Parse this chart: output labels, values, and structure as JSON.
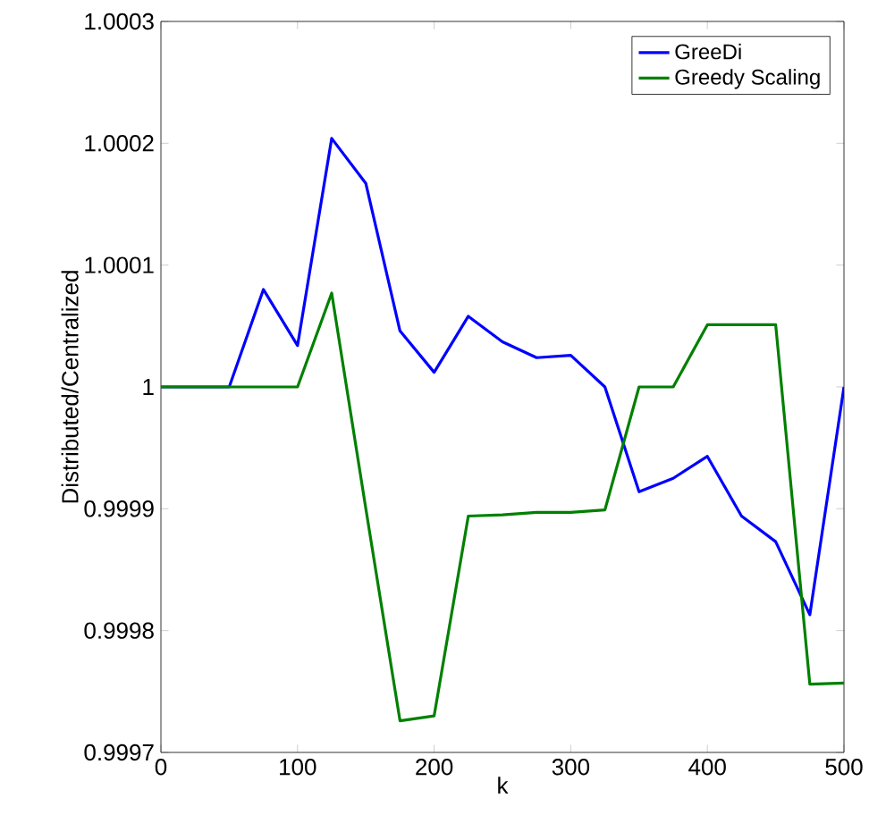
{
  "chart_data": {
    "type": "line",
    "xlabel": "k",
    "ylabel": "Distributed/Centralized",
    "x": [
      0,
      25,
      50,
      75,
      100,
      125,
      150,
      175,
      200,
      225,
      250,
      275,
      300,
      325,
      350,
      375,
      400,
      425,
      450,
      475,
      500
    ],
    "series": [
      {
        "name": "GreeDi",
        "color": "#0000ff",
        "values": [
          1,
          null,
          1,
          1.00008,
          1.000034,
          1.000204,
          1.000167,
          1.000046,
          1.000012,
          1.000058,
          1.000037,
          1.000024,
          1.000026,
          1,
          0.999914,
          0.999925,
          0.999943,
          0.999894,
          0.999873,
          0.999813,
          1
        ]
      },
      {
        "name": "Greedy Scaling",
        "color": "#008000",
        "values": [
          1,
          1,
          1,
          1,
          1,
          1.000077,
          0.9999,
          0.999726,
          0.99973,
          0.999894,
          0.999895,
          0.999897,
          0.999897,
          0.999899,
          1,
          1,
          1.000051,
          1.000051,
          1.000051,
          0.999756,
          0.999757
        ]
      }
    ],
    "xlim": [
      0,
      500
    ],
    "ylim": [
      0.9997,
      1.0003
    ],
    "xticks": [
      0,
      100,
      200,
      300,
      400,
      500
    ],
    "yticks": [
      0.9997,
      0.9998,
      0.9999,
      1,
      1.0001,
      1.0002,
      1.0003
    ],
    "legend": "top right",
    "grid": false,
    "marker": "none",
    "line_style": "solid"
  }
}
